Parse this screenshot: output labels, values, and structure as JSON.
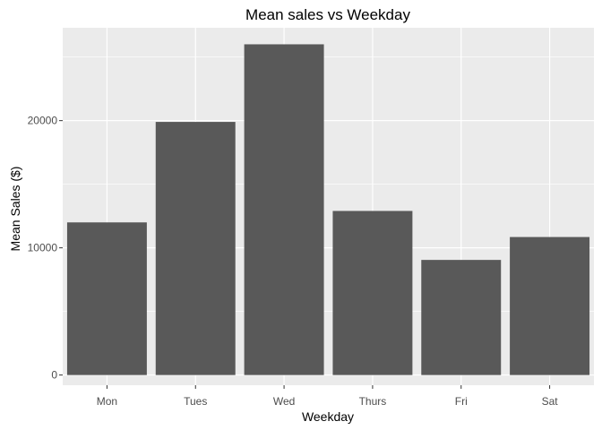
{
  "chart_data": {
    "type": "bar",
    "title": "Mean sales vs Weekday",
    "xlabel": "Weekday",
    "ylabel": "Mean Sales ($)",
    "categories": [
      "Mon",
      "Tues",
      "Wed",
      "Thurs",
      "Fri",
      "Sat"
    ],
    "values": [
      12000,
      19900,
      26000,
      12900,
      9050,
      10850
    ],
    "ylim": [
      -800,
      27300
    ],
    "yticks": [
      0,
      10000,
      20000
    ],
    "ytick_labels": [
      "0",
      "10000",
      "20000"
    ],
    "grid": true,
    "legend": "none"
  },
  "colors": {
    "panel_background": "#ebebeb",
    "grid_major": "#ffffff",
    "bar_fill": "#595959",
    "tick_text": "#4d4d4d"
  }
}
